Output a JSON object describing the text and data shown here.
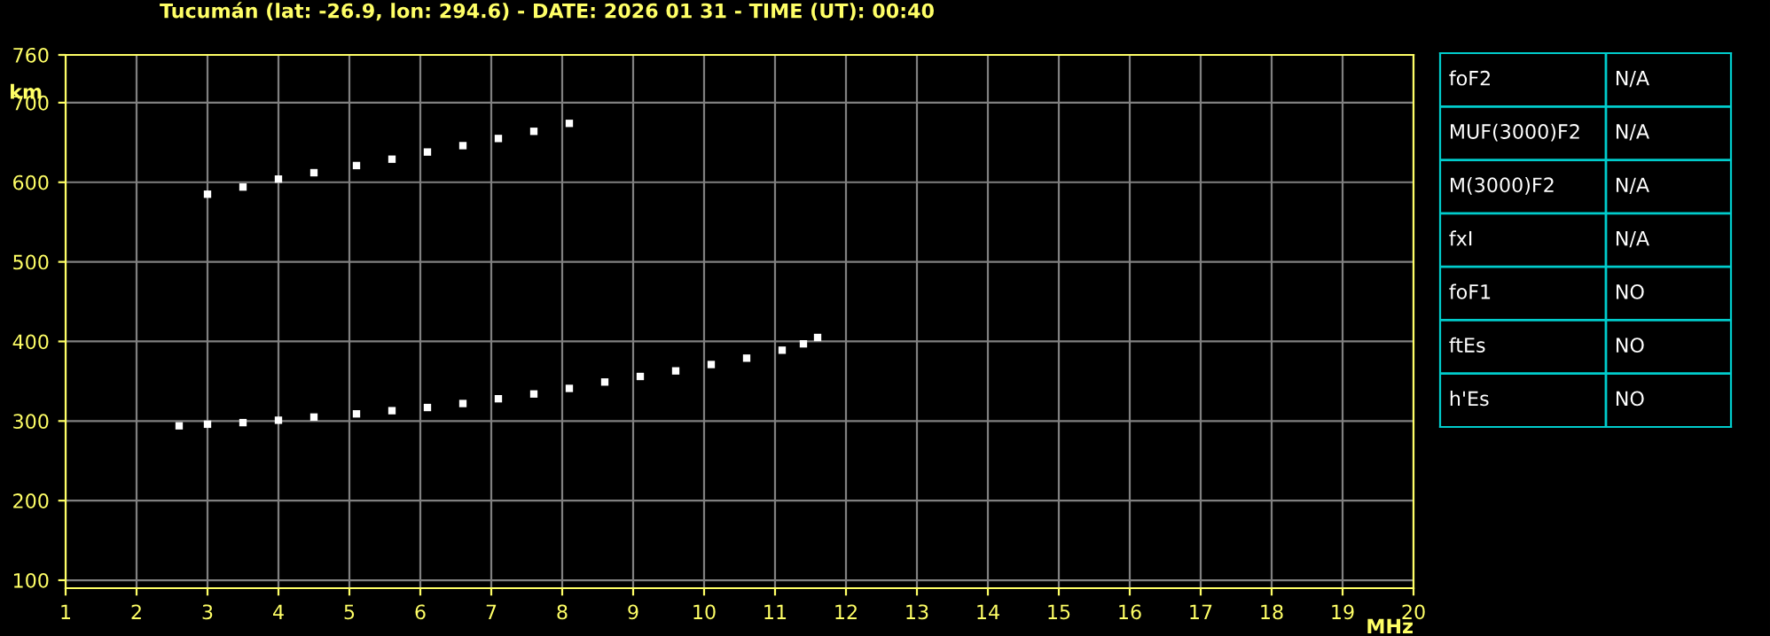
{
  "chart_data": [
    {
      "type": "scatter",
      "title": "Tucumán (lat: -26.9, lon: 294.6) - DATE: 2026 01 31 - TIME (UT): 00:40",
      "xlabel": "MHz",
      "ylabel": "km",
      "xlim": [
        1,
        20
      ],
      "ylim": [
        90,
        760
      ],
      "xticks": [
        1,
        2,
        3,
        4,
        5,
        6,
        7,
        8,
        9,
        10,
        11,
        12,
        13,
        14,
        15,
        16,
        17,
        18,
        19,
        20
      ],
      "yticks": [
        100,
        200,
        300,
        400,
        500,
        600,
        700,
        760
      ],
      "grid": true,
      "marker": "square",
      "series": [
        {
          "color": "#ffffff",
          "x": [
            2.6,
            3.0,
            3.5,
            4.0,
            4.5,
            5.1,
            5.6,
            6.1,
            6.6,
            7.1,
            7.6,
            8.1,
            8.6,
            9.1,
            9.6,
            10.1,
            10.6,
            11.1,
            11.4,
            11.6
          ],
          "values": [
            294,
            296,
            298,
            301,
            305,
            309,
            313,
            317,
            322,
            328,
            334,
            341,
            349,
            356,
            363,
            371,
            379,
            389,
            397,
            405
          ]
        },
        {
          "color": "#ffffff",
          "x": [
            3.0,
            3.5,
            4.0,
            4.5,
            5.1,
            5.6,
            6.1,
            6.6,
            7.1,
            7.6,
            8.1
          ],
          "values": [
            585,
            594,
            604,
            612,
            621,
            629,
            638,
            646,
            655,
            664,
            674
          ]
        }
      ]
    },
    {
      "type": "other",
      "annotations": [
        "foF2",
        "N/A",
        "MUF(3000)F2",
        "N/A",
        "M(3000)F2",
        "N/A",
        "fxI",
        "N/A",
        "foF1",
        "NO",
        "ftEs",
        "NO",
        "h'Es",
        "NO"
      ]
    }
  ]
}
